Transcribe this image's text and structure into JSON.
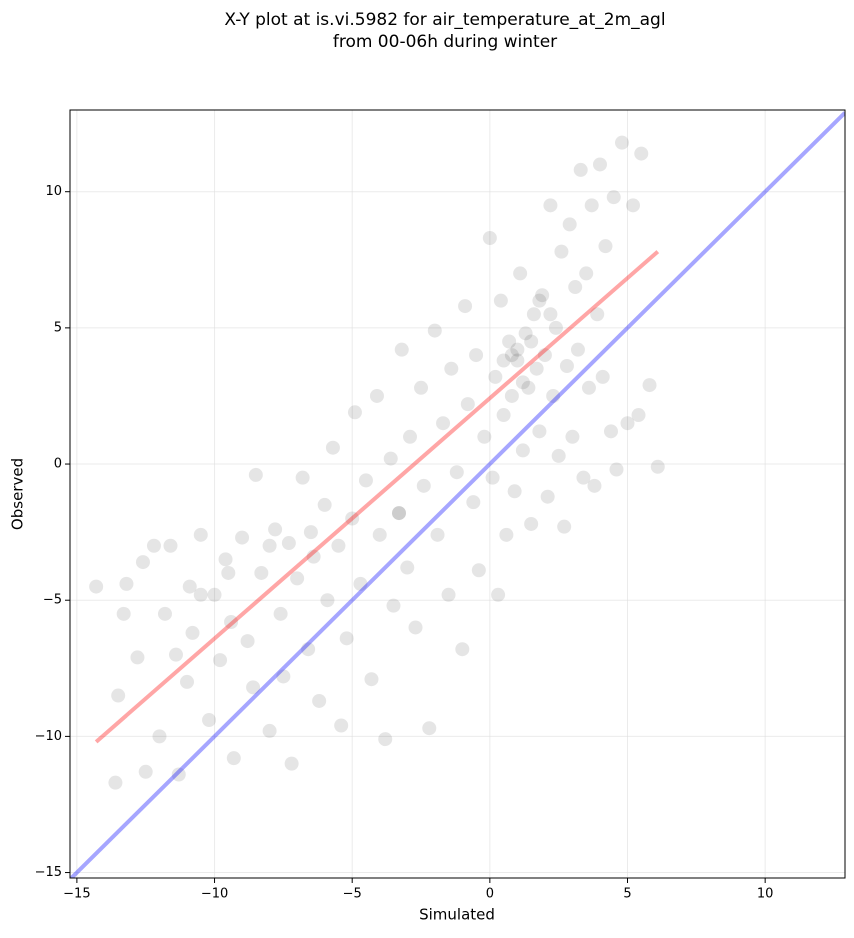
{
  "chart_data": {
    "type": "scatter",
    "title": [
      "X-Y plot at is.vi.5982 for air_temperature_at_2m_agl",
      "from 00-06h during winter"
    ],
    "xlabel": "Simulated",
    "ylabel": "Observed",
    "xlim": [
      -15.25,
      12.9
    ],
    "ylim": [
      -15.2,
      13.0
    ],
    "xticks": [
      {
        "value": -15,
        "label": "−15"
      },
      {
        "value": -10,
        "label": "−10"
      },
      {
        "value": -5,
        "label": "−5"
      },
      0,
      5,
      10
    ],
    "yticks": [
      {
        "value": -15,
        "label": "−15"
      },
      {
        "value": -10,
        "label": "−10"
      },
      {
        "value": -5,
        "label": "−5"
      },
      0,
      5,
      10
    ],
    "grid": true,
    "series": [
      {
        "color": "#000000",
        "alpha": 0.1,
        "x": [
          -14.3,
          -13.5,
          -13.6,
          -13.2,
          -13.3,
          -12.8,
          -12.5,
          -12.6,
          -12.2,
          -12.0,
          -11.8,
          -11.6,
          -11.4,
          -11.3,
          -11.0,
          -10.9,
          -10.8,
          -10.5,
          -10.2,
          -10.0,
          -9.8,
          -9.6,
          -9.4,
          -9.3,
          -9.0,
          -8.8,
          -8.6,
          -8.5,
          -8.3,
          -8.0,
          -7.8,
          -7.6,
          -7.5,
          -7.3,
          -7.2,
          -7.0,
          -6.8,
          -6.6,
          -6.4,
          -6.2,
          -6.0,
          -5.9,
          -5.7,
          -5.5,
          -5.4,
          -5.2,
          -5.0,
          -4.9,
          -4.7,
          -4.5,
          -4.3,
          -4.1,
          -4.0,
          -3.8,
          -3.6,
          -3.5,
          -3.3,
          -3.2,
          -3.0,
          -2.9,
          -2.7,
          -2.5,
          -2.4,
          -2.2,
          -2.0,
          -1.9,
          -1.7,
          -1.5,
          -1.4,
          -1.2,
          -1.0,
          -0.9,
          -0.8,
          -0.6,
          -0.5,
          -0.4,
          -0.2,
          0.0,
          0.1,
          0.2,
          0.3,
          0.4,
          0.5,
          0.6,
          0.7,
          0.8,
          0.9,
          1.0,
          1.1,
          1.2,
          1.3,
          1.4,
          1.5,
          1.6,
          1.7,
          1.8,
          1.9,
          2.0,
          2.1,
          2.2,
          2.3,
          2.4,
          2.5,
          2.6,
          2.7,
          2.8,
          2.9,
          3.0,
          3.1,
          3.2,
          3.3,
          3.4,
          3.5,
          3.6,
          3.7,
          3.8,
          3.9,
          4.0,
          4.1,
          4.2,
          4.4,
          4.5,
          4.6,
          4.8,
          5.0,
          5.2,
          5.4,
          5.5,
          5.8,
          6.1,
          0.5,
          1.0,
          1.5,
          1.2,
          0.8,
          -9.5,
          -10.5,
          -8.0,
          -6.5,
          -3.3,
          1.8,
          2.2
        ],
        "values": [
          -4.5,
          -8.5,
          -11.7,
          -4.4,
          -5.5,
          -7.1,
          -11.3,
          -3.6,
          -3.0,
          -10.0,
          -5.5,
          -3.0,
          -7.0,
          -11.4,
          -8.0,
          -4.5,
          -6.2,
          -2.6,
          -9.4,
          -4.8,
          -7.2,
          -3.5,
          -5.8,
          -10.8,
          -2.7,
          -6.5,
          -8.2,
          -0.4,
          -4.0,
          -9.8,
          -2.4,
          -5.5,
          -7.8,
          -2.9,
          -11.0,
          -4.2,
          -0.5,
          -6.8,
          -3.4,
          -8.7,
          -1.5,
          -5.0,
          0.6,
          -3.0,
          -9.6,
          -6.4,
          -2.0,
          1.9,
          -4.4,
          -0.6,
          -7.9,
          2.5,
          -2.6,
          -10.1,
          0.2,
          -5.2,
          -1.8,
          4.2,
          -3.8,
          1.0,
          -6.0,
          2.8,
          -0.8,
          -9.7,
          4.9,
          -2.6,
          1.5,
          -4.8,
          3.5,
          -0.3,
          -6.8,
          5.8,
          2.2,
          -1.4,
          4.0,
          -3.9,
          1.0,
          8.3,
          -0.5,
          3.2,
          -4.8,
          6.0,
          1.8,
          -2.6,
          4.5,
          2.5,
          -1.0,
          3.8,
          7.0,
          0.5,
          4.8,
          2.8,
          -2.2,
          5.5,
          3.5,
          1.2,
          6.2,
          4.0,
          -1.2,
          9.5,
          2.5,
          5.0,
          0.3,
          7.8,
          -2.3,
          3.6,
          8.8,
          1.0,
          6.5,
          4.2,
          10.8,
          -0.5,
          7.0,
          2.8,
          9.5,
          -0.8,
          5.5,
          11.0,
          3.2,
          8.0,
          1.2,
          9.8,
          -0.2,
          11.8,
          1.5,
          9.5,
          1.8,
          11.4,
          2.9,
          -0.1,
          3.8,
          4.2,
          4.5,
          3.0,
          4.0,
          -4.0,
          -4.8,
          -3.0,
          -2.5,
          -1.8,
          6.0,
          5.5
        ]
      }
    ],
    "lines": [
      {
        "color": "#ff0000",
        "alpha": 0.35,
        "x": [
          -14.3,
          6.1
        ],
        "values": [
          -10.2,
          7.8
        ]
      },
      {
        "color": "#0000ff",
        "alpha": 0.35,
        "x": [
          -15.25,
          12.9
        ],
        "values": [
          -15.25,
          12.9
        ]
      }
    ]
  }
}
